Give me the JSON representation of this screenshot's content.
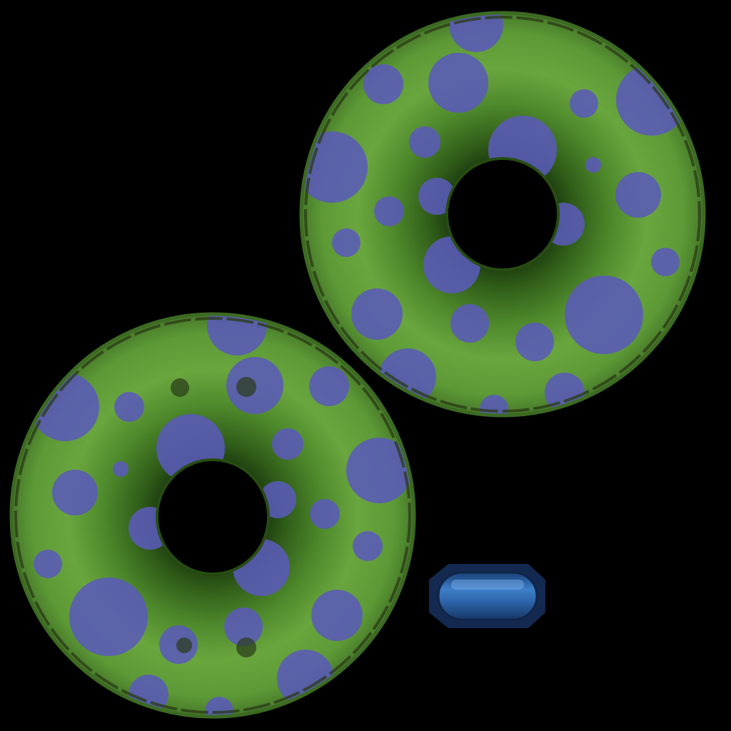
{
  "texture": {
    "background_color": "#000000",
    "ring_color": "#6aa23e",
    "ring_shadow_color": "#2e5b18",
    "spot_color": "#5a5ab4",
    "seam_color": "#2a3a14",
    "connector_color": "#2f63a8"
  },
  "parts": [
    {
      "name": "upper-right-tube",
      "kind": "inflatable-ring"
    },
    {
      "name": "lower-left-tube",
      "kind": "inflatable-ring"
    },
    {
      "name": "connector-piece",
      "kind": "blue-connector"
    }
  ]
}
